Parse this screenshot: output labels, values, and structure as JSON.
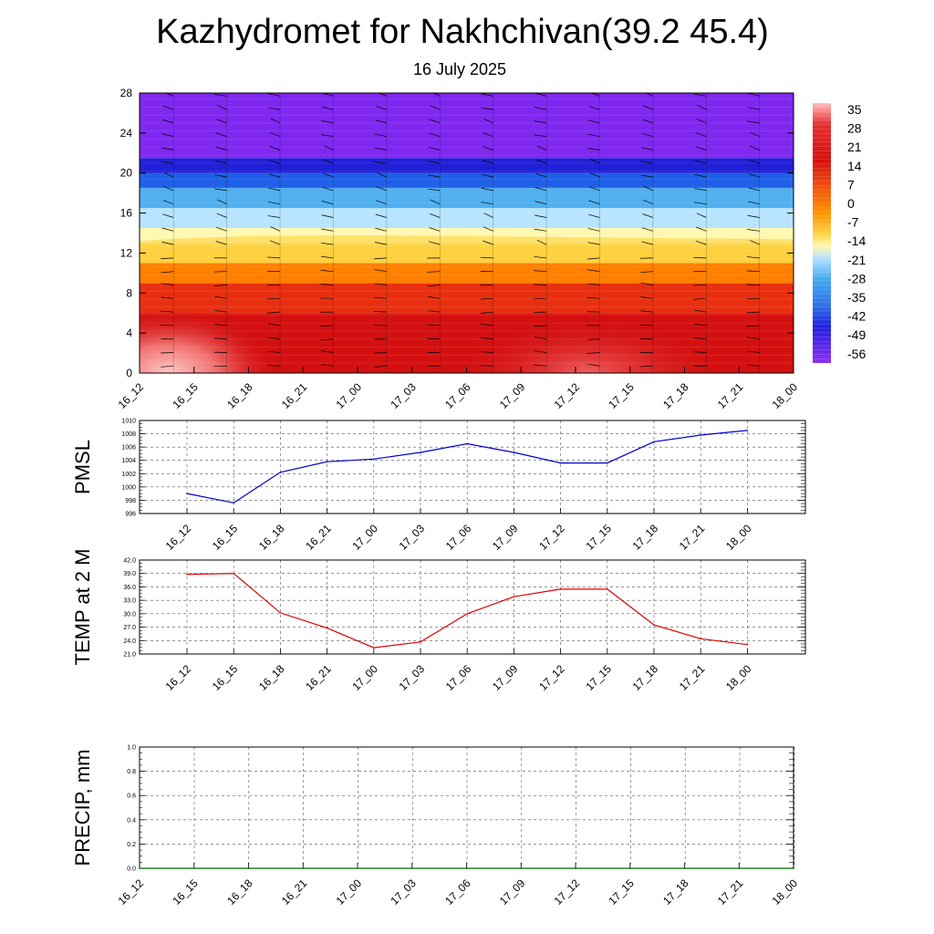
{
  "title": "Kazhydromet for Nakhchivan(39.2 45.4)",
  "subtitle": "16 July 2025",
  "time_labels": [
    "16_12",
    "16_15",
    "16_18",
    "16_21",
    "17_00",
    "17_03",
    "17_06",
    "17_09",
    "17_12",
    "17_15",
    "17_18",
    "17_21",
    "18_00"
  ],
  "chart_data": [
    {
      "type": "heatmap",
      "y_ticks": [
        "0",
        "4",
        "8",
        "12",
        "16",
        "20",
        "24",
        "28"
      ],
      "ylim": [
        0,
        28
      ],
      "colorbar": {
        "labels": [
          "35",
          "28",
          "21",
          "14",
          "7",
          "0",
          "-7",
          "-14",
          "-21",
          "-28",
          "-35",
          "-42",
          "-49",
          "-56"
        ],
        "colors": [
          "#ffbcbc",
          "#e83030",
          "#d41010",
          "#f04010",
          "#ff7a00",
          "#ffb000",
          "#ffe040",
          "#fff8b0",
          "#b0e0ff",
          "#40a8f0",
          "#3070e8",
          "#2020e0",
          "#4020f0",
          "#8030f0"
        ]
      },
      "bands": [
        {
          "from": 0,
          "to": 6,
          "color": "#d41010"
        },
        {
          "from": 6,
          "to": 9,
          "color": "#e83010"
        },
        {
          "from": 9,
          "to": 11,
          "color": "#ff8000"
        },
        {
          "from": 11,
          "to": 13,
          "color": "#ffd040"
        },
        {
          "from": 13,
          "to": 14.5,
          "color": "#fff8b0"
        },
        {
          "from": 14.5,
          "to": 16.5,
          "color": "#b8e4ff"
        },
        {
          "from": 16.5,
          "to": 18.5,
          "color": "#50b0f0"
        },
        {
          "from": 18.5,
          "to": 20,
          "color": "#2060e8"
        },
        {
          "from": 20,
          "to": 21.5,
          "color": "#2020d8"
        },
        {
          "from": 21.5,
          "to": 28,
          "color": "#8028f0"
        }
      ]
    },
    {
      "type": "line",
      "ylabel": "PMSL",
      "y_ticks": [
        "996",
        "998",
        "1000",
        "1002",
        "1004",
        "1006",
        "1008",
        "1010"
      ],
      "ylim": [
        996,
        1010
      ],
      "color": "#0000cc",
      "values": [
        999.0,
        997.6,
        1002.2,
        1003.8,
        1004.2,
        1005.2,
        1006.5,
        1005.2,
        1003.6,
        1003.6,
        1006.8,
        1007.8,
        1008.5
      ]
    },
    {
      "type": "line",
      "ylabel": "TEMP at 2 M",
      "y_ticks": [
        "21.0",
        "24.0",
        "27.0",
        "30.0",
        "33.0",
        "36.0",
        "39.0",
        "42.0"
      ],
      "ylim": [
        21,
        42
      ],
      "color": "#dd0000",
      "values": [
        38.8,
        39.0,
        30.2,
        26.8,
        22.4,
        23.7,
        30.0,
        33.8,
        35.5,
        35.5,
        27.5,
        24.4,
        23.1
      ]
    },
    {
      "type": "line",
      "ylabel": "PRECIP, mm",
      "y_ticks": [
        "0.0",
        "0.2",
        "0.4",
        "0.6",
        "0.8",
        "1.0"
      ],
      "ylim": [
        0,
        1
      ],
      "color": "#006600",
      "values": [
        0,
        0,
        0,
        0,
        0,
        0,
        0,
        0,
        0,
        0,
        0,
        0,
        0
      ]
    }
  ]
}
